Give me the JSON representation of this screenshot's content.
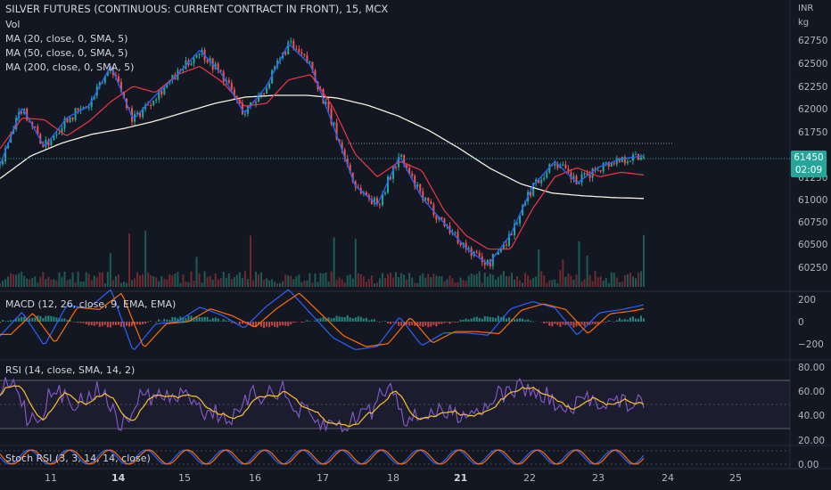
{
  "header": {
    "symbol_title": "SILVER FUTURES (CONTINUOUS: CURRENT CONTRACT IN FRONT), 15, MCX",
    "indicators": [
      "Vol",
      "MA (20, close, 0, SMA, 5)",
      "MA (50, close, 0, SMA, 5)",
      "MA (200, close, 0, SMA, 5)"
    ]
  },
  "units": {
    "currency": "INR",
    "weight": "kg"
  },
  "price_axis": [
    "62750",
    "62500",
    "62250",
    "62000",
    "61750",
    "61250",
    "61000",
    "60750",
    "60500",
    "60250"
  ],
  "last_price": {
    "value": "61450",
    "countdown": "02:09"
  },
  "panes": {
    "macd": {
      "label": "MACD (12, 26, close, 9, EMA, EMA)",
      "ticks": [
        "200",
        "0",
        "−200"
      ]
    },
    "rsi": {
      "label": "RSI (14, close, SMA, 14, 2)",
      "ticks": [
        "80.00",
        "60.00",
        "40.00",
        "20.00"
      ]
    },
    "stoch": {
      "label": "Stoch RSI (3, 3, 14, 14, close)",
      "ticks": [
        "0.00"
      ]
    }
  },
  "time_axis": [
    {
      "label": "11",
      "bold": false
    },
    {
      "label": "14",
      "bold": true
    },
    {
      "label": "15",
      "bold": false
    },
    {
      "label": "16",
      "bold": false
    },
    {
      "label": "17",
      "bold": false
    },
    {
      "label": "18",
      "bold": false
    },
    {
      "label": "21",
      "bold": true
    },
    {
      "label": "22",
      "bold": false
    },
    {
      "label": "23",
      "bold": false
    },
    {
      "label": "24",
      "bold": false
    },
    {
      "label": "25",
      "bold": false
    }
  ],
  "colors": {
    "background": "#131722",
    "up": "#26a69a",
    "down": "#ef5350",
    "ma20": "#2962ff",
    "ma50": "#f23645",
    "ma200": "#f5f0e1",
    "macd": "#2962ff",
    "signal": "#ff6d00",
    "rsi": "#7e57c2",
    "rsi_ma": "#fbc02d"
  },
  "chart_data": {
    "type": "line",
    "title": "SILVER FUTURES (CONTINUOUS: CURRENT CONTRACT IN FRONT), 15, MCX",
    "x_labels": [
      "11",
      "14",
      "15",
      "16",
      "17",
      "18",
      "21",
      "22",
      "23",
      "24",
      "25"
    ],
    "ylim": [
      60150,
      62900
    ],
    "series": [
      {
        "name": "MA (20, close, 0, SMA, 5)",
        "values": [
          61380,
          62020,
          61580,
          61900,
          62030,
          62480,
          61880,
          62150,
          62380,
          62650,
          62380,
          61950,
          62250,
          62720,
          62480,
          61820,
          61150,
          60940,
          61480,
          61020,
          60740,
          60460,
          60280,
          60610,
          61150,
          61420,
          61180,
          61360,
          61450,
          61480
        ]
      },
      {
        "name": "MA (50, close, 0, SMA, 5)",
        "values": [
          61560,
          61900,
          61880,
          61700,
          61860,
          62080,
          62250,
          62180,
          62380,
          62470,
          62300,
          62030,
          62060,
          62320,
          62380,
          62020,
          61500,
          61250,
          61420,
          61320,
          60880,
          60600,
          60450,
          60450,
          60900,
          61250,
          61350,
          61250,
          61300,
          61270
        ]
      },
      {
        "name": "MA (200, close, 0, SMA, 5)",
        "values": [
          61230,
          61480,
          61620,
          61720,
          61780,
          61860,
          61960,
          62060,
          62130,
          62150,
          62150,
          62120,
          62040,
          61920,
          61760,
          61560,
          61340,
          61170,
          61070,
          61040,
          61020,
          61010
        ]
      }
    ]
  }
}
